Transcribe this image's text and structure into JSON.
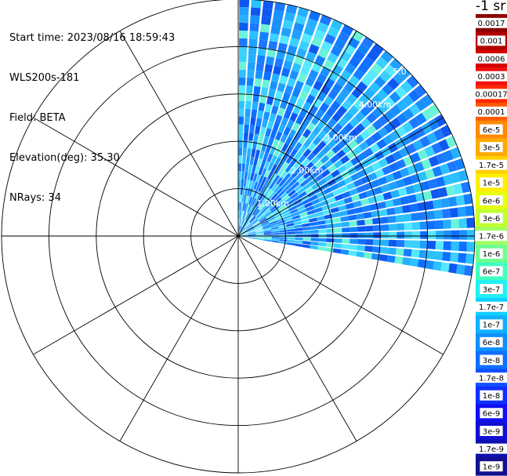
{
  "info": {
    "start_time": "Start time: 2023/08/16 18:59:43",
    "instrument": "WLS200s-181",
    "field": "Field: BETA",
    "elevation": "Elevation(deg): 35.30",
    "nrays": "NRays: 34"
  },
  "colorbar": {
    "unit_label": "-1 sr",
    "tick_labels": [
      "0.0017",
      "0.001",
      "0.0006",
      "0.0003",
      "0.00017",
      "0.0001",
      "6e-5",
      "3e-5",
      "1.7e-5",
      "1e-5",
      "6e-6",
      "3e-6",
      "1.7e-6",
      "1e-6",
      "6e-7",
      "3e-7",
      "1.7e-7",
      "1e-7",
      "6e-8",
      "3e-8",
      "1.7e-8",
      "1e-8",
      "6e-9",
      "3e-9",
      "1.7e-9",
      "1e-9"
    ],
    "colors": [
      "#8b0000",
      "#b20000",
      "#d40000",
      "#ee1010",
      "#ff2a00",
      "#ff5a00",
      "#ff8a00",
      "#ffaa00",
      "#ffd000",
      "#ffee00",
      "#e8ff10",
      "#c0ff30",
      "#a0ff60",
      "#70ff90",
      "#40ffc0",
      "#20f0f0",
      "#10d0ff",
      "#10b0ff",
      "#1090ff",
      "#1070ff",
      "#1050ff",
      "#1030ff",
      "#1010f0",
      "#1010d0",
      "#1010b0",
      "#101090"
    ]
  },
  "chart_data": {
    "type": "polar-ppi",
    "range_ring_labels": [
      "1.00km",
      "2.00km",
      "3.00km",
      "4.00km",
      "5.0"
    ],
    "range_rings_km": [
      1,
      2,
      3,
      4,
      5
    ],
    "max_range_km": 5.0,
    "azimuth_spokes_deg": [
      0,
      30,
      60,
      90,
      120,
      150,
      180,
      210,
      240,
      270,
      300,
      330
    ],
    "scan_sector_deg": [
      0,
      100
    ],
    "nrays": 34,
    "grid": true
  }
}
